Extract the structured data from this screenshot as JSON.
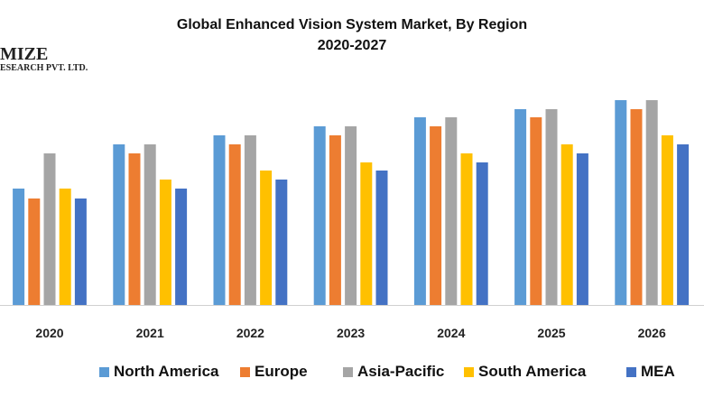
{
  "logo": {
    "line1": "MIZE",
    "line2": "ESEARCH PVT. LTD."
  },
  "chart_data": {
    "type": "bar",
    "title": "Global Enhanced Vision System Market, By Region",
    "subtitle": "2020-2027",
    "xlabel": "",
    "ylabel": "",
    "categories": [
      "2020",
      "2021",
      "2022",
      "2023",
      "2024",
      "2025",
      "2026"
    ],
    "ylim": [
      0,
      25
    ],
    "grid": false,
    "legend_placement": "bottom",
    "series": [
      {
        "name": "North America",
        "color": "#5B9BD5",
        "values": [
          12.9,
          17.8,
          18.8,
          19.8,
          20.8,
          21.7,
          22.7
        ]
      },
      {
        "name": "Europe",
        "color": "#ED7D31",
        "values": [
          11.8,
          16.8,
          17.8,
          18.8,
          19.8,
          20.8,
          21.7
        ]
      },
      {
        "name": "Asia-Pacific",
        "color": "#A5A5A5",
        "values": [
          16.8,
          17.8,
          18.8,
          19.8,
          20.8,
          21.7,
          22.7
        ]
      },
      {
        "name": "South America",
        "color": "#FFC000",
        "values": [
          12.9,
          13.9,
          14.9,
          15.8,
          16.8,
          17.8,
          18.8
        ]
      },
      {
        "name": "MEA",
        "color": "#4472C4",
        "values": [
          11.8,
          12.9,
          13.9,
          14.9,
          15.8,
          16.8,
          17.8
        ]
      }
    ]
  }
}
